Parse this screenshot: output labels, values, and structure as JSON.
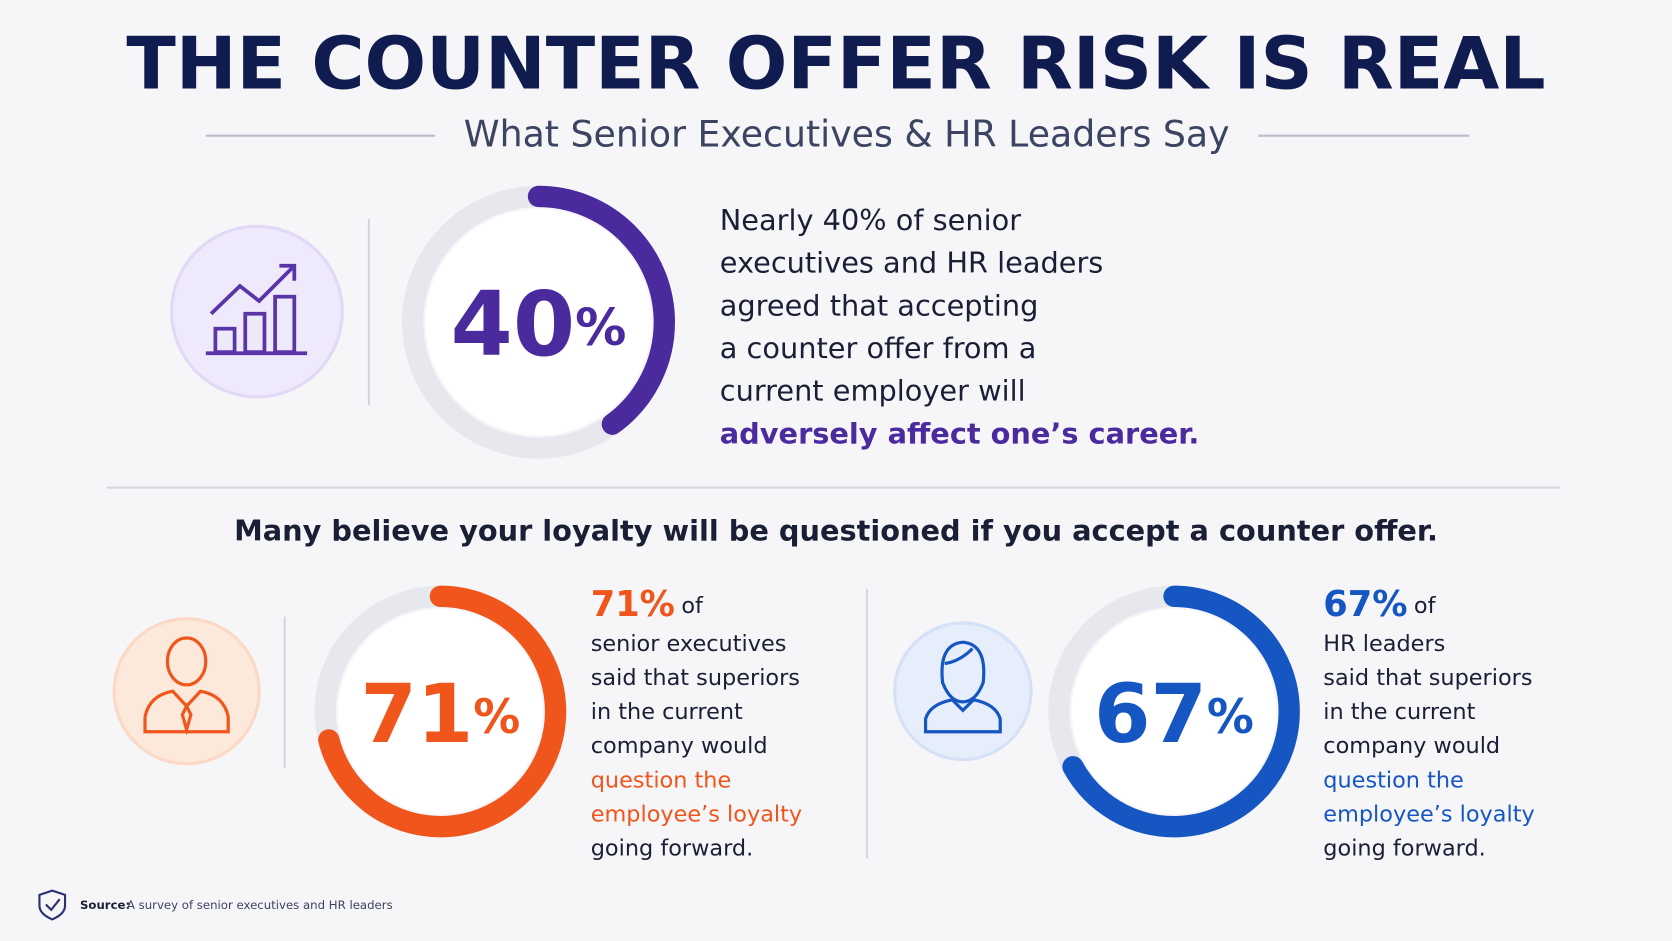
{
  "header": {
    "title": "THE COUNTER OFFER RISK IS REAL",
    "subtitle": "What Senior Executives & HR Leaders Say"
  },
  "feature": {
    "value": 40,
    "number": "40",
    "unit": "%",
    "color": "#4b2a9e",
    "lines": [
      "Nearly 40% of senior",
      "executives and HR leaders",
      "agreed that accepting",
      "a counter offer from a",
      "current employer will"
    ],
    "highlight": "adversely affect one’s career."
  },
  "section": {
    "heading": "Many believe your loyalty will be questioned if you accept a counter offer.",
    "items": [
      {
        "value": 71,
        "number": "71",
        "unit": "%",
        "color": "#f0561b",
        "lead": "71%",
        "lead_rest": "of",
        "lines": [
          "senior executives",
          "said that superiors",
          "in the current",
          "company would"
        ],
        "highlight_lines": [
          "question the",
          "employee’s loyalty"
        ],
        "end": "going forward."
      },
      {
        "value": 67,
        "number": "67",
        "unit": "%",
        "color": "#1656c2",
        "lead": "67%",
        "lead_rest": "of",
        "lines": [
          "HR leaders",
          "said that superiors",
          "in the current",
          "company would"
        ],
        "highlight_lines": [
          "question the",
          "employee’s loyalty"
        ],
        "end": "going forward."
      }
    ]
  },
  "source": {
    "label": "Source:",
    "text": "A survey of senior executives and HR leaders"
  }
}
